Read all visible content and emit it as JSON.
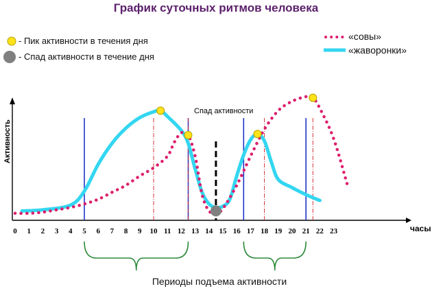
{
  "title": "График суточных ритмов человека",
  "legend": {
    "peak": "- Пик активности в течения дня",
    "dip": "- Спад активности в течение дня",
    "owls": "«совы»",
    "larks": "«жаворонки»"
  },
  "colors": {
    "owls": "#dc1f6e",
    "larks": "#33d6f0",
    "peak_marker": "#ffe31a",
    "dip_marker": "#808080",
    "blue_lines": "#1f35c8",
    "red_dash": "#d0303a",
    "bracket": "#2e8b3c",
    "title": "#5b1f6b"
  },
  "annotations": {
    "dip_label": "Спад активности",
    "periods_label": "Периоды подъема активности"
  },
  "chart_data": {
    "type": "line",
    "xlabel": "часы",
    "ylabel": "Активность",
    "x_ticks": [
      "0",
      "1",
      "2",
      "3",
      "4",
      "5",
      "6",
      "7",
      "8",
      "9",
      "10",
      "11",
      "12",
      "13",
      "14",
      "15",
      "16",
      "17",
      "18",
      "19",
      "20",
      "21",
      "22",
      "23"
    ],
    "xlim": [
      0,
      23.5
    ],
    "ylim": [
      0,
      100
    ],
    "grid": false,
    "series": [
      {
        "name": "«жаворонки»",
        "style": "solid",
        "points": [
          [
            0.5,
            8
          ],
          [
            2,
            9
          ],
          [
            4,
            13
          ],
          [
            5,
            25
          ],
          [
            6,
            48
          ],
          [
            7,
            66
          ],
          [
            8,
            79
          ],
          [
            9,
            88
          ],
          [
            10,
            93
          ],
          [
            10.5,
            94
          ],
          [
            11,
            89
          ],
          [
            12,
            77
          ],
          [
            12.5,
            66
          ],
          [
            13,
            44
          ],
          [
            13.5,
            24
          ],
          [
            14,
            14
          ],
          [
            14.5,
            11
          ],
          [
            15,
            12
          ],
          [
            15.5,
            18
          ],
          [
            16,
            38
          ],
          [
            16.5,
            56
          ],
          [
            17,
            69
          ],
          [
            17.5,
            74
          ],
          [
            18,
            68
          ],
          [
            18.5,
            50
          ],
          [
            19,
            35
          ],
          [
            20,
            28
          ],
          [
            21,
            22
          ],
          [
            22,
            17
          ]
        ]
      },
      {
        "name": "«совы»",
        "style": "dotted",
        "points": [
          [
            0,
            6
          ],
          [
            1,
            6
          ],
          [
            2,
            7
          ],
          [
            3,
            9
          ],
          [
            4,
            11
          ],
          [
            5,
            14
          ],
          [
            6,
            18
          ],
          [
            7,
            24
          ],
          [
            8,
            30
          ],
          [
            9,
            38
          ],
          [
            10,
            45
          ],
          [
            11,
            55
          ],
          [
            11.5,
            67
          ],
          [
            12,
            75
          ],
          [
            12.5,
            73
          ],
          [
            13,
            55
          ],
          [
            13.5,
            22
          ],
          [
            14,
            8
          ],
          [
            14.5,
            6
          ],
          [
            15,
            10
          ],
          [
            16,
            30
          ],
          [
            17,
            55
          ],
          [
            18,
            78
          ],
          [
            19,
            94
          ],
          [
            20,
            102
          ],
          [
            21,
            106
          ],
          [
            21.5,
            105
          ],
          [
            22,
            96
          ],
          [
            23,
            70
          ],
          [
            24,
            30
          ]
        ]
      }
    ],
    "peaks": [
      [
        10.5,
        94
      ],
      [
        12.5,
        73
      ],
      [
        17.5,
        74
      ],
      [
        21.5,
        105
      ]
    ],
    "dip": [
      14.5,
      8
    ],
    "vertical_lines": {
      "blue": [
        5,
        12.5,
        16.5,
        21
      ],
      "red_dashed": [
        10,
        12.5,
        18,
        21.5
      ],
      "black_dashed": 14.5
    },
    "activity_periods": [
      [
        5,
        12.5
      ],
      [
        16.5,
        21
      ]
    ]
  }
}
